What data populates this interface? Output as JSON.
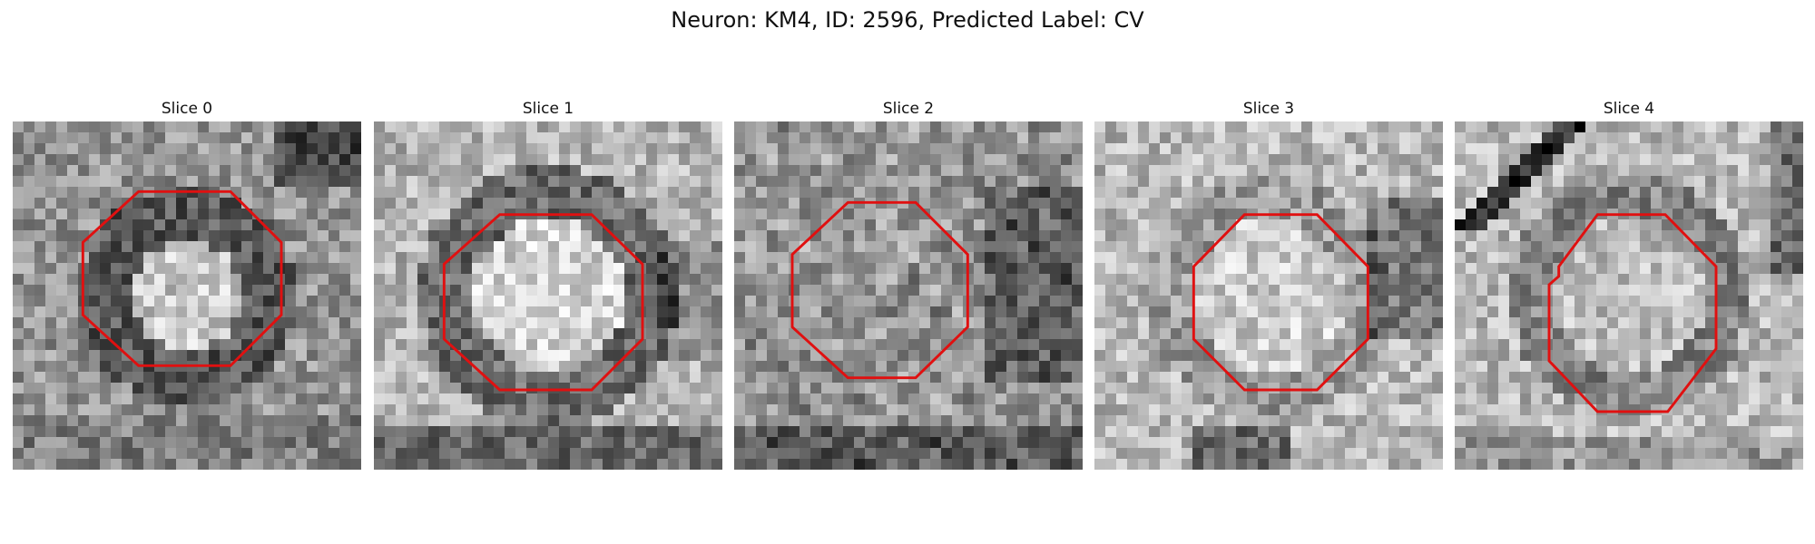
{
  "figure": {
    "title": "Neuron: KM4, ID: 2596, Predicted Label: CV"
  },
  "contour_color": "#e01010",
  "panels": [
    {
      "title": "Slice 0",
      "contour": [
        [
          104,
          58
        ],
        [
          180,
          58
        ],
        [
          222,
          100
        ],
        [
          222,
          160
        ],
        [
          180,
          202
        ],
        [
          104,
          202
        ],
        [
          58,
          160
        ],
        [
          58,
          100
        ]
      ],
      "pattern": "ring-dark"
    },
    {
      "title": "Slice 1",
      "contour": [
        [
          104,
          77
        ],
        [
          180,
          77
        ],
        [
          222,
          118
        ],
        [
          222,
          180
        ],
        [
          180,
          222
        ],
        [
          104,
          222
        ],
        [
          58,
          180
        ],
        [
          58,
          118
        ]
      ],
      "pattern": "ring-light"
    },
    {
      "title": "Slice 2",
      "contour": [
        [
          94,
          67
        ],
        [
          150,
          67
        ],
        [
          193,
          110
        ],
        [
          193,
          170
        ],
        [
          150,
          212
        ],
        [
          94,
          212
        ],
        [
          48,
          170
        ],
        [
          48,
          110
        ]
      ],
      "pattern": "textured"
    },
    {
      "title": "Slice 3",
      "contour": [
        [
          124,
          77
        ],
        [
          184,
          77
        ],
        [
          226,
          120
        ],
        [
          226,
          180
        ],
        [
          184,
          222
        ],
        [
          124,
          222
        ],
        [
          82,
          180
        ],
        [
          82,
          120
        ]
      ],
      "pattern": "light-center"
    },
    {
      "title": "Slice 4",
      "contour": [
        [
          118,
          77
        ],
        [
          174,
          77
        ],
        [
          216,
          120
        ],
        [
          216,
          188
        ],
        [
          176,
          240
        ],
        [
          118,
          240
        ],
        [
          78,
          198
        ],
        [
          78,
          135
        ],
        [
          86,
          128
        ],
        [
          86,
          120
        ]
      ],
      "pattern": "diagonal"
    }
  ]
}
